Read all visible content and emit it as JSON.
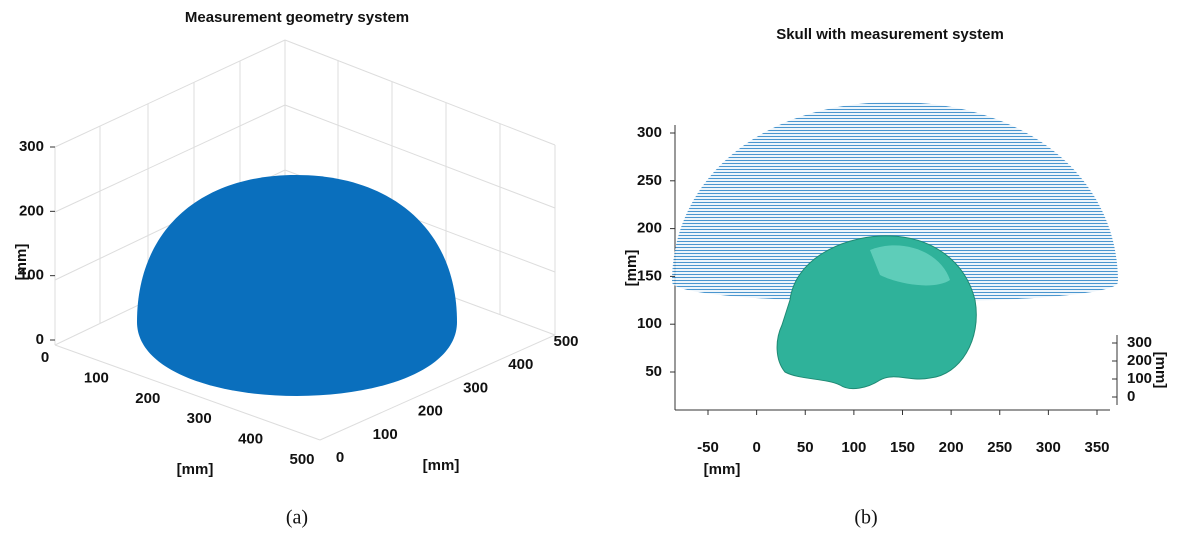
{
  "panels": [
    {
      "title": "Measurement geometry system",
      "caption": "(a)",
      "zlabel": "[mm]",
      "xlabel": "[mm]",
      "ylabel": "[mm]",
      "zticks": [
        0,
        100,
        200,
        300
      ],
      "xticks": [
        0,
        100,
        200,
        300,
        400,
        500
      ],
      "yticks": [
        0,
        100,
        200,
        300,
        400,
        500
      ]
    },
    {
      "title": "Skull with measurement system",
      "caption": "(b)",
      "ylabel": "[mm]",
      "xlabel": "[mm]",
      "zlabel": "[mm]",
      "yticks": [
        50,
        100,
        150,
        200,
        250,
        300
      ],
      "xticks": [
        -50,
        0,
        50,
        100,
        150,
        200,
        250,
        300,
        350
      ],
      "zticks": [
        0,
        100,
        200,
        300
      ]
    }
  ]
}
